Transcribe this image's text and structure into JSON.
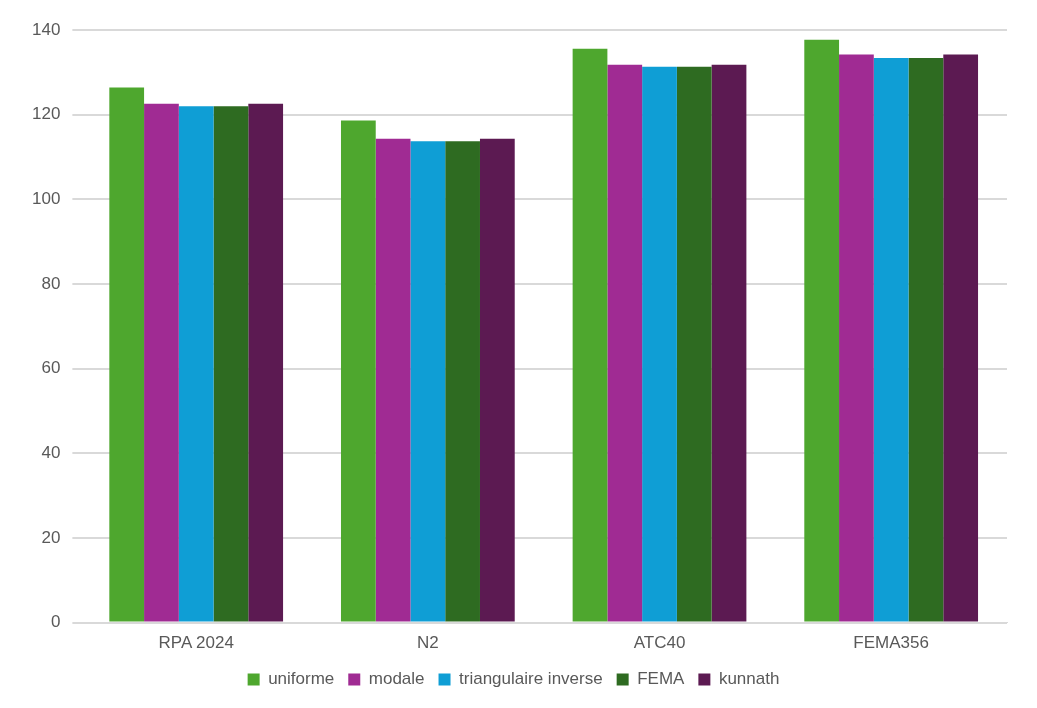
{
  "chart_data": {
    "type": "bar",
    "categories": [
      "RPA 2024",
      "N2",
      "ATC40",
      "FEMA356"
    ],
    "series": [
      {
        "name": "uniforme",
        "color": "#4ea72e",
        "values": [
          126.4,
          118.6,
          135.6,
          137.7
        ]
      },
      {
        "name": "modale",
        "color": "#a02b93",
        "values": [
          122.6,
          114.3,
          131.8,
          134.2
        ]
      },
      {
        "name": "triangulaire inverse",
        "color": "#0f9ed5",
        "values": [
          122,
          113.7,
          131.3,
          133.4
        ]
      },
      {
        "name": "FEMA",
        "color": "#2e6b21",
        "values": [
          122,
          113.7,
          131.3,
          133.4
        ]
      },
      {
        "name": "kunnath",
        "color": "#5c1a52",
        "values": [
          122.6,
          114.3,
          131.8,
          134.2
        ]
      }
    ],
    "ylim": [
      0,
      140
    ],
    "yticks": [
      0,
      20,
      40,
      60,
      80,
      100,
      120,
      140
    ],
    "grid": "y",
    "legend": "bottom"
  }
}
